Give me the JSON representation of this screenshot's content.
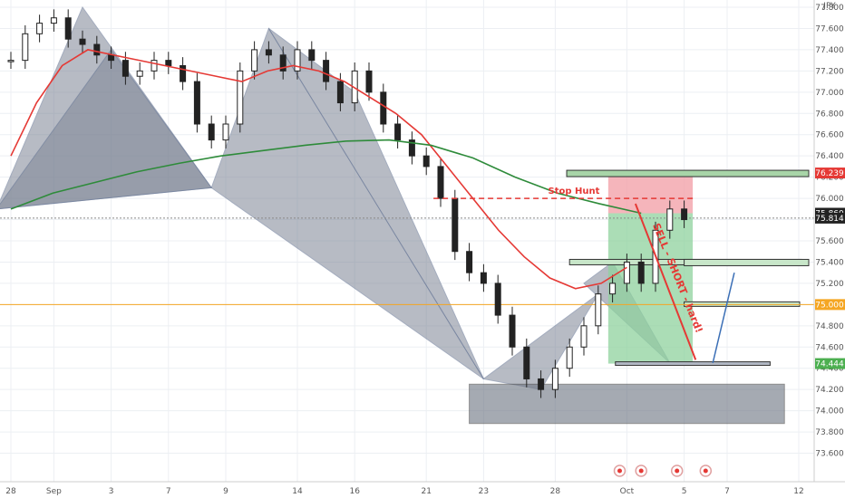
{
  "chart_data": {
    "type": "line",
    "title": "",
    "currency_label": "JPY",
    "ylim": [
      73.4,
      77.8
    ],
    "y_ticks": [
      "77.800",
      "77.600",
      "77.400",
      "77.200",
      "77.000",
      "76.800",
      "76.600",
      "76.400",
      "76.200",
      "76.000",
      "75.800",
      "75.600",
      "75.400",
      "75.200",
      "75.000",
      "74.800",
      "74.600",
      "74.400",
      "74.200",
      "74.000",
      "73.800",
      "73.600"
    ],
    "x_ticks": [
      {
        "label": "28",
        "i": 0
      },
      {
        "label": "Sep",
        "i": 3
      },
      {
        "label": "3",
        "i": 7
      },
      {
        "label": "7",
        "i": 11
      },
      {
        "label": "9",
        "i": 15
      },
      {
        "label": "14",
        "i": 20
      },
      {
        "label": "16",
        "i": 24
      },
      {
        "label": "21",
        "i": 29
      },
      {
        "label": "23",
        "i": 33
      },
      {
        "label": "28",
        "i": 38
      },
      {
        "label": "Oct",
        "i": 43
      },
      {
        "label": "5",
        "i": 47
      },
      {
        "label": "7",
        "i": 50
      },
      {
        "label": "12",
        "i": 55
      }
    ],
    "candles_close": [
      77.3,
      77.55,
      77.65,
      77.7,
      77.5,
      77.45,
      77.35,
      77.3,
      77.15,
      77.2,
      77.3,
      77.25,
      77.1,
      76.7,
      76.55,
      76.7,
      77.2,
      77.4,
      77.35,
      77.2,
      77.4,
      77.3,
      77.1,
      76.9,
      77.2,
      77.0,
      76.7,
      76.55,
      76.4,
      76.3,
      76.0,
      75.5,
      75.3,
      75.2,
      74.9,
      74.6,
      74.3,
      74.2,
      74.4,
      74.6,
      74.8,
      75.1,
      75.2,
      75.4,
      75.2,
      75.7,
      75.9,
      75.8
    ],
    "series": [
      {
        "color": "#e53935",
        "values": [
          76.4,
          76.9,
          77.25,
          77.4,
          77.35,
          77.3,
          77.25,
          77.2,
          77.15,
          77.1,
          77.2,
          77.25,
          77.2,
          77.1,
          76.95,
          76.8,
          76.6,
          76.3,
          76.0,
          75.7,
          75.45,
          75.25,
          75.15,
          75.2,
          75.35
        ]
      },
      {
        "color": "#2e8b3a",
        "values": [
          75.9,
          76.05,
          76.15,
          76.25,
          76.33,
          76.4,
          76.45,
          76.5,
          76.54,
          76.55,
          76.5,
          76.38,
          76.2,
          76.05,
          75.95,
          75.86
        ]
      }
    ],
    "annotations": {
      "stop_hunt": "Stop Hunt",
      "sell_text": "SELL - SHORT - hard!",
      "sl_level": 76.239,
      "entry_level": 75.86,
      "current_price": 75.814,
      "tp_level": 74.444,
      "key_level": 75.0
    },
    "price_labels": [
      {
        "value": "76.239",
        "color": "#e53935"
      },
      {
        "value": "75.860",
        "color": "#222222"
      },
      {
        "value": "75.814",
        "color": "#222222"
      },
      {
        "value": "75.000",
        "color": "#f5a623"
      },
      {
        "value": "74.444",
        "color": "#4caf50"
      }
    ],
    "grid": true,
    "legend": "none"
  }
}
